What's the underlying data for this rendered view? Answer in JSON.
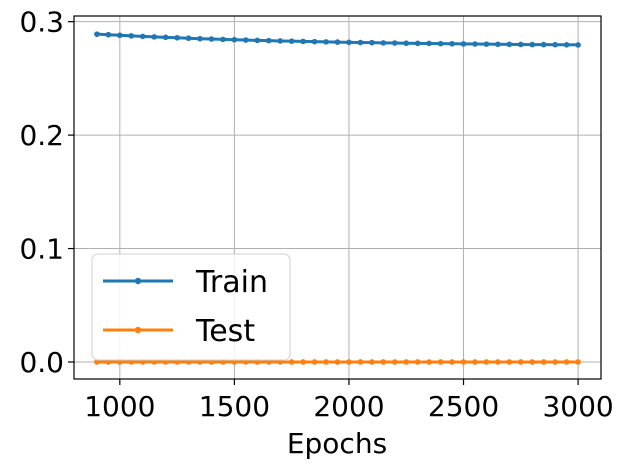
{
  "chart_data": {
    "type": "line",
    "title": "",
    "xlabel": "Epochs",
    "ylabel": "",
    "xlim": [
      800,
      3100
    ],
    "ylim": [
      -0.015,
      0.305
    ],
    "xticks": [
      1000,
      1500,
      2000,
      2500,
      3000
    ],
    "yticks": [
      0.0,
      0.1,
      0.2,
      0.3
    ],
    "xtick_labels": [
      "1000",
      "1500",
      "2000",
      "2500",
      "3000"
    ],
    "ytick_labels": [
      "0.0",
      "0.1",
      "0.2",
      "0.3"
    ],
    "grid": true,
    "legend_position": "lower-left",
    "x": [
      900,
      950,
      1000,
      1050,
      1100,
      1150,
      1200,
      1250,
      1300,
      1350,
      1400,
      1450,
      1500,
      1550,
      1600,
      1650,
      1700,
      1750,
      1800,
      1850,
      1900,
      1950,
      2000,
      2050,
      2100,
      2150,
      2200,
      2250,
      2300,
      2350,
      2400,
      2450,
      2500,
      2550,
      2600,
      2650,
      2700,
      2750,
      2800,
      2850,
      2900,
      2950,
      3000
    ],
    "series": [
      {
        "name": "Train",
        "color": "#1f77b4",
        "values": [
          0.289,
          0.2885,
          0.288,
          0.2875,
          0.287,
          0.2866,
          0.2862,
          0.2858,
          0.2854,
          0.285,
          0.2847,
          0.2844,
          0.2841,
          0.2838,
          0.2835,
          0.2833,
          0.283,
          0.2828,
          0.2826,
          0.2824,
          0.2822,
          0.282,
          0.2818,
          0.2816,
          0.2815,
          0.2813,
          0.2812,
          0.281,
          0.2809,
          0.2808,
          0.2806,
          0.2805,
          0.2804,
          0.2803,
          0.2802,
          0.2801,
          0.28,
          0.2799,
          0.2798,
          0.2798,
          0.2797,
          0.2796,
          0.2795
        ]
      },
      {
        "name": "Test",
        "color": "#ff7f0e",
        "values": [
          0.0,
          0.0,
          0.0,
          0.0,
          0.0,
          0.0,
          0.0,
          0.0,
          0.0,
          0.0,
          0.0,
          0.0,
          0.0,
          0.0,
          0.0,
          0.0,
          0.0,
          0.0,
          0.0,
          0.0,
          0.0,
          0.0,
          0.0,
          0.0,
          0.0,
          0.0,
          0.0,
          0.0,
          0.0,
          0.0,
          0.0,
          0.0,
          0.0,
          0.0,
          0.0,
          0.0,
          0.0,
          0.0,
          0.0,
          0.0,
          0.0,
          0.0,
          0.0
        ]
      }
    ]
  }
}
